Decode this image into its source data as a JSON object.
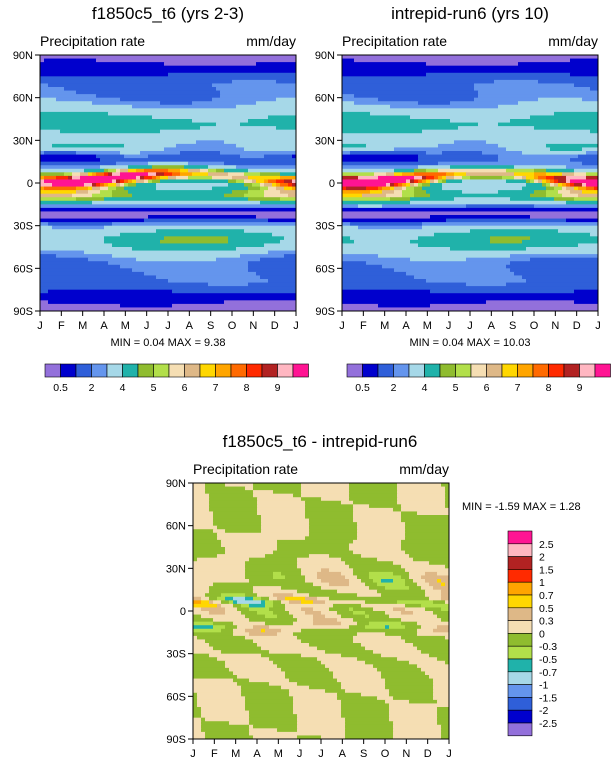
{
  "chart_data": [
    {
      "type": "heatmap",
      "title": "f1850c5_t6 (yrs 2-3)",
      "left_label": "Precipitation rate",
      "right_label": "mm/day",
      "x_ticks": [
        "J",
        "F",
        "M",
        "A",
        "M",
        "J",
        "J",
        "A",
        "S",
        "O",
        "N",
        "D",
        "J"
      ],
      "y_ticks": [
        "90N",
        "60N",
        "30N",
        "0",
        "30S",
        "60S",
        "90S"
      ],
      "y_range": [
        -90,
        90
      ],
      "stats": "MIN =  0.04 MAX =   9.38",
      "min": 0.04,
      "max": 9.38,
      "legend_labels": [
        "0.5",
        "2",
        "4",
        "5",
        "6",
        "7",
        "8",
        "9"
      ],
      "palette": [
        "#9370db",
        "#0000cd",
        "#2f5fd9",
        "#6495ed",
        "#a6d8e8",
        "#20b2aa",
        "#8fbc2f",
        "#b2df4a",
        "#f5deb3",
        "#deb887",
        "#ffd700",
        "#ffa500",
        "#ff6a00",
        "#ff2a00",
        "#b22222",
        "#ffb6c1",
        "#ff1493"
      ],
      "year_offset": 0
    },
    {
      "type": "heatmap",
      "title": "intrepid-run6 (yrs 10)",
      "left_label": "Precipitation rate",
      "right_label": "mm/day",
      "x_ticks": [
        "J",
        "F",
        "M",
        "A",
        "M",
        "J",
        "J",
        "A",
        "S",
        "O",
        "N",
        "D",
        "J"
      ],
      "y_ticks": [
        "90N",
        "60N",
        "30N",
        "0",
        "30S",
        "60S",
        "90S"
      ],
      "y_range": [
        -90,
        90
      ],
      "stats": "MIN =  0.04 MAX =  10.03",
      "min": 0.04,
      "max": 10.03,
      "legend_labels": [
        "0.5",
        "2",
        "4",
        "5",
        "6",
        "7",
        "8",
        "9"
      ],
      "palette": [
        "#9370db",
        "#0000cd",
        "#2f5fd9",
        "#6495ed",
        "#a6d8e8",
        "#20b2aa",
        "#8fbc2f",
        "#b2df4a",
        "#f5deb3",
        "#deb887",
        "#ffd700",
        "#ffa500",
        "#ff6a00",
        "#ff2a00",
        "#b22222",
        "#ffb6c1",
        "#ff1493"
      ],
      "year_offset": 1
    },
    {
      "type": "heatmap",
      "title": "f1850c5_t6 - intrepid-run6",
      "left_label": "Precipitation rate",
      "right_label": "mm/day",
      "x_ticks": [
        "J",
        "F",
        "M",
        "A",
        "M",
        "J",
        "J",
        "A",
        "S",
        "O",
        "N",
        "D",
        "J"
      ],
      "y_ticks": [
        "90N",
        "60N",
        "30N",
        "0",
        "30S",
        "60S",
        "90S"
      ],
      "y_range": [
        -90,
        90
      ],
      "stats": "MIN =  -1.59 MAX =   1.28",
      "min": -1.59,
      "max": 1.28,
      "legend_labels": [
        "2.5",
        "2",
        "1.5",
        "1",
        "0.7",
        "0.5",
        "0.3",
        "0",
        "-0.3",
        "-0.5",
        "-0.7",
        "-1",
        "-1.5",
        "-2",
        "-2.5"
      ],
      "palette": [
        "#ff1493",
        "#ffb6c1",
        "#b22222",
        "#ff2a00",
        "#ffa500",
        "#ffd700",
        "#deb887",
        "#f5deb3",
        "#8fbc2f",
        "#b2df4a",
        "#20b2aa",
        "#a6d8e8",
        "#6495ed",
        "#2f5fd9",
        "#0000cd",
        "#9370db"
      ]
    }
  ]
}
